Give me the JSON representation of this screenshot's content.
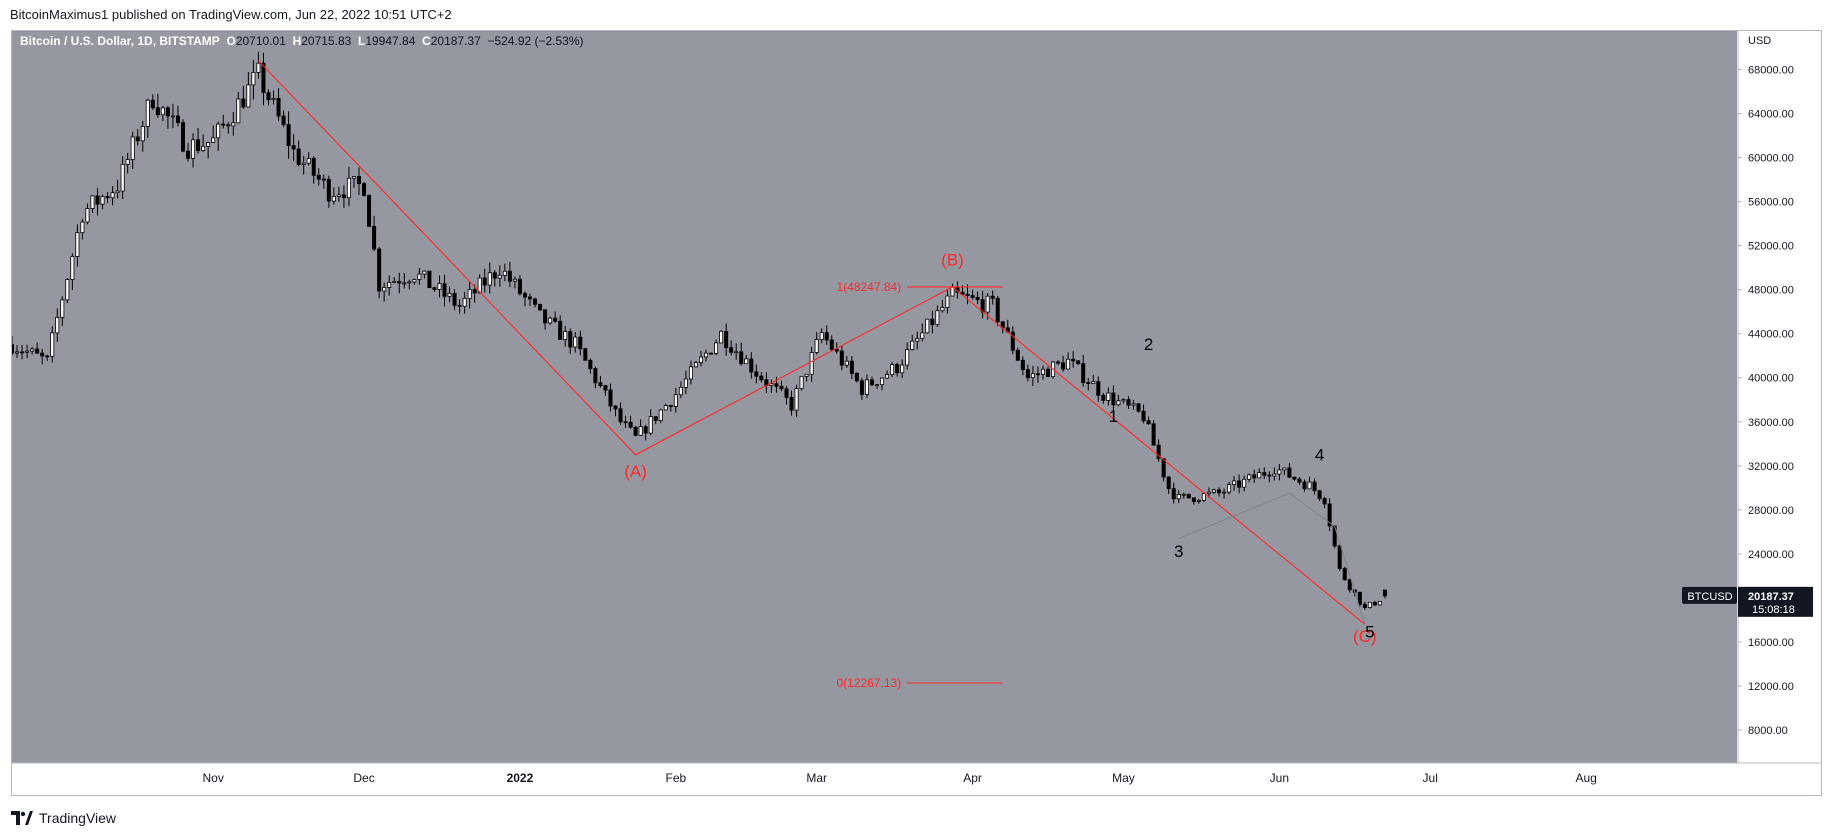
{
  "header": {
    "published_text": "BitcoinMaximus1 published on TradingView.com, Jun 22, 2022 10:51 UTC+2"
  },
  "footer": {
    "brand": "TradingView"
  },
  "legend": {
    "symbol_text": "Bitcoin / U.S. Dollar, 1D, BITSTAMP",
    "o_label": "O",
    "o_value": "20710.01",
    "h_label": "H",
    "h_value": "20715.83",
    "l_label": "L",
    "l_value": "19947.84",
    "c_label": "C",
    "c_value": "20187.37",
    "change": "−524.92 (−2.53%)"
  },
  "price_axis": {
    "currency": "USD",
    "ticks": [
      "68000.00",
      "64000.00",
      "60000.00",
      "56000.00",
      "52000.00",
      "48000.00",
      "44000.00",
      "40000.00",
      "36000.00",
      "32000.00",
      "28000.00",
      "24000.00",
      "20000.00",
      "16000.00",
      "12000.00",
      "8000.00"
    ]
  },
  "time_axis": {
    "ticks": [
      "Nov",
      "Dec",
      "2022",
      "Feb",
      "Mar",
      "Apr",
      "May",
      "Jun",
      "Jul",
      "Aug"
    ]
  },
  "price_badge": {
    "symbol": "BTCUSD",
    "price": "20187.37",
    "countdown": "15:08:18"
  },
  "colors": {
    "chart_bg": "#9598a1",
    "candle": "#000000",
    "annotation": "#ff2828",
    "badge_bg": "#131722",
    "badge_text": "#ffffff",
    "subwave_line": "#7f8289",
    "wave_label": "#000000"
  },
  "chart_data": {
    "type": "candlestick",
    "symbol": "Bitcoin / U.S. Dollar",
    "interval": "1D",
    "exchange": "BITSTAMP",
    "y_unit": "USD",
    "ylim": [
      5000,
      71500
    ],
    "x_range": [
      "2021-09-22",
      "2022-08-31"
    ],
    "grid": false,
    "series": [
      {
        "name": "price-path",
        "points": [
          [
            "2021-09-22",
            43000
          ],
          [
            "2021-09-29",
            41500
          ],
          [
            "2021-10-06",
            55000
          ],
          [
            "2021-10-13",
            57500
          ],
          [
            "2021-10-20",
            65500
          ],
          [
            "2021-10-27",
            61000
          ],
          [
            "2021-11-01",
            61500
          ],
          [
            "2021-11-10",
            67500
          ],
          [
            "2021-11-17",
            60500
          ],
          [
            "2021-11-24",
            57000
          ],
          [
            "2021-12-01",
            57500
          ],
          [
            "2021-12-04",
            48500
          ],
          [
            "2021-12-11",
            49500
          ],
          [
            "2021-12-20",
            46500
          ],
          [
            "2021-12-28",
            50000
          ],
          [
            "2022-01-05",
            45500
          ],
          [
            "2022-01-12",
            43000
          ],
          [
            "2022-01-21",
            36000
          ],
          [
            "2022-01-24",
            34500
          ],
          [
            "2022-02-01",
            38500
          ],
          [
            "2022-02-10",
            44000
          ],
          [
            "2022-02-17",
            40500
          ],
          [
            "2022-02-24",
            37500
          ],
          [
            "2022-03-02",
            44000
          ],
          [
            "2022-03-10",
            39000
          ],
          [
            "2022-03-17",
            41000
          ],
          [
            "2022-03-28",
            47500
          ],
          [
            "2022-04-05",
            46500
          ],
          [
            "2022-04-12",
            40000
          ],
          [
            "2022-04-20",
            41500
          ],
          [
            "2022-04-27",
            38500
          ],
          [
            "2022-05-05",
            36500
          ],
          [
            "2022-05-10",
            30000
          ],
          [
            "2022-05-12",
            29000
          ],
          [
            "2022-05-20",
            29500
          ],
          [
            "2022-05-31",
            31800
          ],
          [
            "2022-06-07",
            30200
          ],
          [
            "2022-06-10",
            29000
          ],
          [
            "2022-06-13",
            22500
          ],
          [
            "2022-06-18",
            19000
          ],
          [
            "2022-06-22",
            20187
          ]
        ]
      }
    ],
    "ohlc_last": {
      "open": 20710.01,
      "high": 20715.83,
      "low": 19947.84,
      "close": 20187.37,
      "change": -524.92,
      "change_pct": -2.53
    },
    "annotations": {
      "abc_path": [
        {
          "date": "2021-11-10",
          "price": 68800
        },
        {
          "date": "2022-01-24",
          "price": 33000
        },
        {
          "date": "2022-03-28",
          "price": 48247.84
        },
        {
          "date": "2022-06-18",
          "price": 17600
        }
      ],
      "abc_labels": [
        {
          "text": "(A)",
          "date": "2022-01-24",
          "price": 31000
        },
        {
          "text": "(B)",
          "date": "2022-03-28",
          "price": 50200
        },
        {
          "text": "(C)",
          "date": "2022-06-18",
          "price": 16000
        }
      ],
      "subwave_path": [
        {
          "date": "2022-05-12",
          "price": 25400
        },
        {
          "date": "2022-06-03",
          "price": 29500
        },
        {
          "date": "2022-06-12",
          "price": 26500
        },
        {
          "date": "2022-06-18",
          "price": 17600
        }
      ],
      "wave_labels": [
        {
          "text": "1",
          "date": "2022-04-29",
          "price": 36000
        },
        {
          "text": "2",
          "date": "2022-05-06",
          "price": 42500
        },
        {
          "text": "3",
          "date": "2022-05-12",
          "price": 23700
        },
        {
          "text": "4",
          "date": "2022-06-09",
          "price": 32500
        },
        {
          "text": "5",
          "date": "2022-06-19",
          "price": 16400
        }
      ],
      "fib_levels": [
        {
          "label": "1(48247.84)",
          "price": 48247.84,
          "from": "2022-03-19",
          "to": "2022-04-07"
        },
        {
          "label": "0(12267.13)",
          "price": 12267.13,
          "from": "2022-03-19",
          "to": "2022-04-07"
        }
      ]
    }
  }
}
